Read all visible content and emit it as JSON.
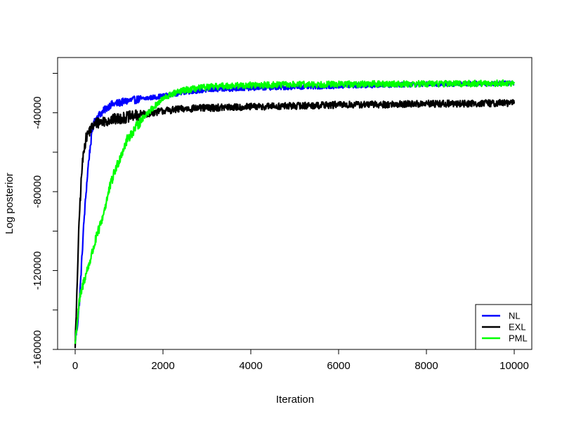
{
  "chart_data": {
    "type": "line",
    "title": "",
    "xlabel": "Iteration",
    "ylabel": "Log posterior",
    "xlim": [
      -400,
      10400
    ],
    "ylim": [
      -160000,
      -12000
    ],
    "x_ticks": [
      0,
      2000,
      4000,
      6000,
      8000,
      10000
    ],
    "x_tick_labels": [
      "0",
      "2000",
      "4000",
      "6000",
      "8000",
      "10000"
    ],
    "y_ticks": [
      -160000,
      -140000,
      -120000,
      -100000,
      -80000,
      -60000,
      -40000,
      -20000
    ],
    "y_tick_labels": [
      "-160000",
      "",
      "-120000",
      "",
      "-80000",
      "",
      "-40000",
      ""
    ],
    "grid": false,
    "legend_position": "bottom-right",
    "series": [
      {
        "name": "NL",
        "color": "#0000ff",
        "noise": 1200,
        "x": [
          0,
          50,
          100,
          150,
          200,
          250,
          300,
          350,
          400,
          450,
          500,
          600,
          700,
          800,
          1000,
          1200,
          1500,
          2000,
          2500,
          3000,
          4000,
          5000,
          6000,
          7000,
          8000,
          9000,
          10000
        ],
        "values": [
          -156000,
          -148000,
          -135000,
          -115000,
          -95000,
          -80000,
          -66000,
          -56000,
          -48000,
          -44000,
          -42000,
          -40000,
          -38000,
          -36000,
          -35000,
          -34000,
          -33000,
          -31500,
          -29500,
          -28500,
          -27500,
          -27000,
          -26500,
          -26000,
          -25500,
          -25300,
          -25000
        ]
      },
      {
        "name": "EXL",
        "color": "#000000",
        "noise": 1800,
        "x": [
          0,
          30,
          60,
          100,
          150,
          200,
          250,
          300,
          400,
          500,
          700,
          1000,
          1500,
          2000,
          2500,
          3000,
          4000,
          5000,
          6000,
          7000,
          8000,
          9000,
          10000
        ],
        "values": [
          -157000,
          -140000,
          -115000,
          -90000,
          -70000,
          -58000,
          -53000,
          -50000,
          -47000,
          -45000,
          -44000,
          -43000,
          -41000,
          -39000,
          -38000,
          -37500,
          -37000,
          -36500,
          -36000,
          -35800,
          -35500,
          -35300,
          -35000
        ]
      },
      {
        "name": "PML",
        "color": "#00ff00",
        "noise": 1600,
        "x": [
          0,
          50,
          100,
          200,
          300,
          400,
          500,
          600,
          700,
          800,
          900,
          1000,
          1100,
          1200,
          1400,
          1600,
          1800,
          2000,
          2200,
          2500,
          3000,
          3500,
          4000,
          5000,
          6000,
          7000,
          8000,
          9000,
          10000
        ],
        "values": [
          -157000,
          -145000,
          -135000,
          -125000,
          -118000,
          -110000,
          -102000,
          -95000,
          -86000,
          -77000,
          -70000,
          -64000,
          -58000,
          -53000,
          -47000,
          -41000,
          -37000,
          -33000,
          -30500,
          -28500,
          -27000,
          -26300,
          -26000,
          -25700,
          -25500,
          -25400,
          -25300,
          -25200,
          -25000
        ]
      }
    ]
  }
}
